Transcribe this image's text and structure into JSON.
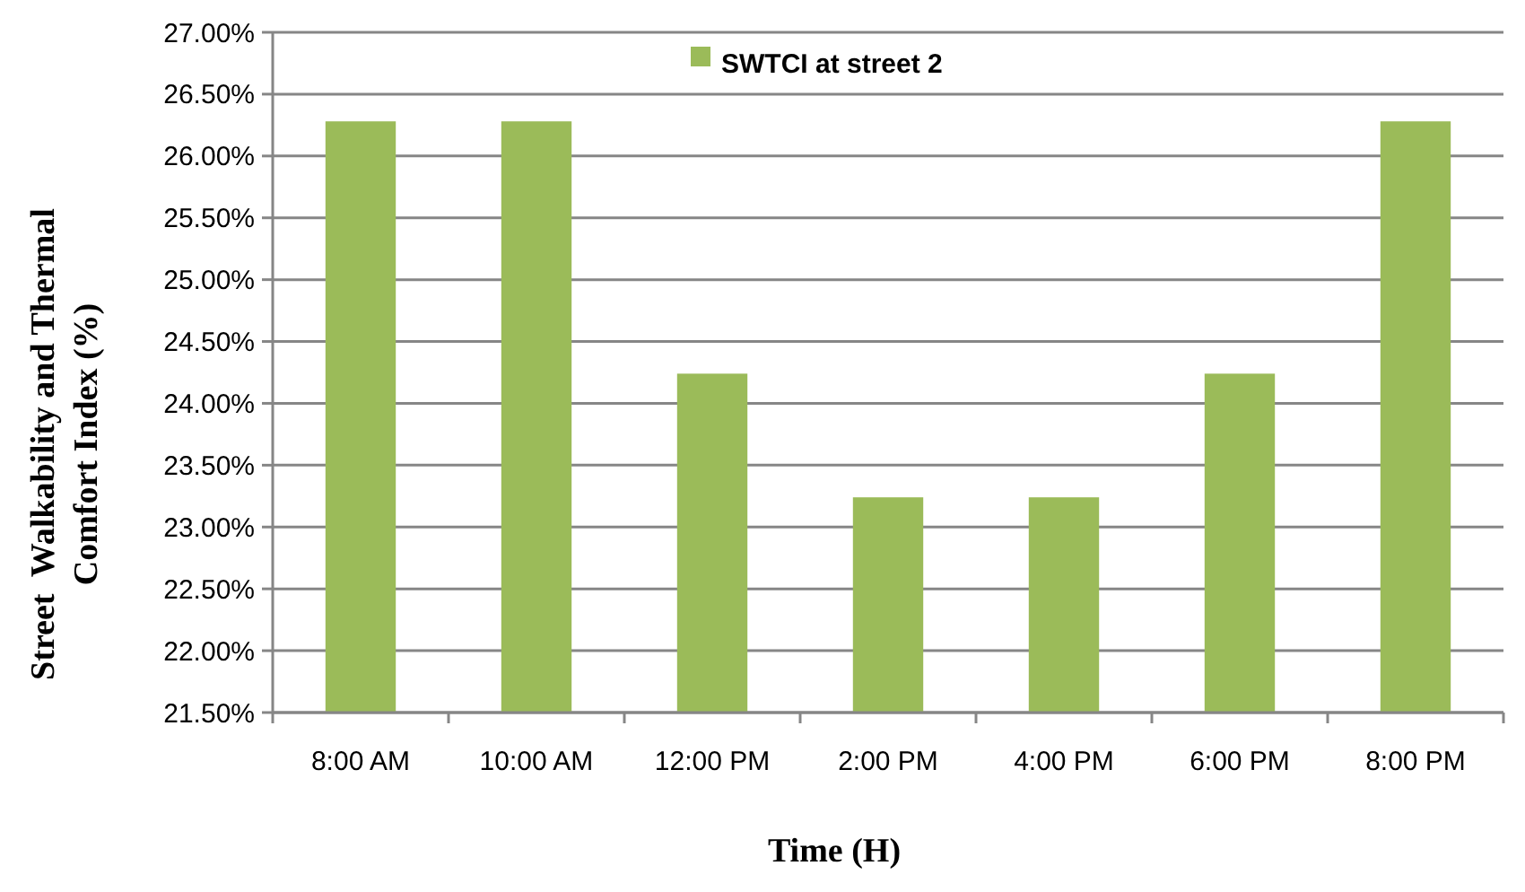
{
  "chart_data": {
    "type": "bar",
    "xlabel": "Time (H)",
    "ylabel": "Street  Walkability and Thermal\nComfort Index (%)",
    "categories": [
      "8:00 AM",
      "10:00 AM",
      "12:00 PM",
      "2:00 PM",
      "4:00 PM",
      "6:00 PM",
      "8:00 PM"
    ],
    "series": [
      {
        "name": "SWTCI at street 2",
        "color": "#9bbb59",
        "values": [
          26.28,
          26.28,
          24.24,
          23.24,
          23.24,
          24.24,
          26.28
        ]
      }
    ],
    "ylim": [
      21.5,
      27
    ],
    "yticks": [
      {
        "value": 21.5,
        "label": "21.50%"
      },
      {
        "value": 22,
        "label": "22.00%"
      },
      {
        "value": 22.5,
        "label": "22.50%"
      },
      {
        "value": 23,
        "label": "23.00%"
      },
      {
        "value": 23.5,
        "label": "23.50%"
      },
      {
        "value": 24,
        "label": "24.00%"
      },
      {
        "value": 24.5,
        "label": "24.50%"
      },
      {
        "value": 25,
        "label": "25.00%"
      },
      {
        "value": 25.5,
        "label": "25.50%"
      },
      {
        "value": 26,
        "label": "26.00%"
      },
      {
        "value": 26.5,
        "label": "26.50%"
      },
      {
        "value": 27,
        "label": "27.00%"
      }
    ],
    "grid": "y",
    "legend": "top"
  }
}
